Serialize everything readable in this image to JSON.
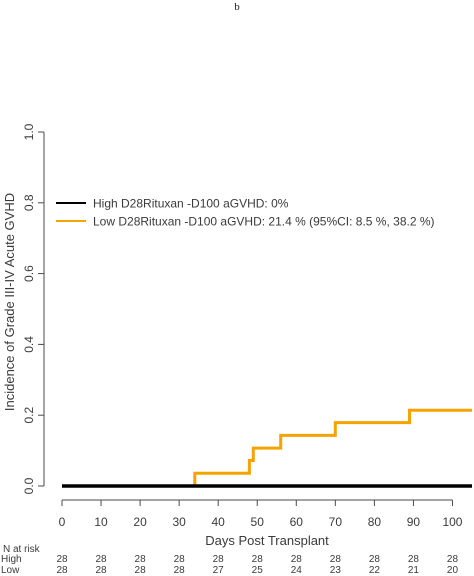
{
  "panel_label": "b",
  "chart_data": {
    "type": "line",
    "xlabel": "Days Post Transplant",
    "ylabel": "Incidence of Grade III-IV Acute GVHD",
    "xlim": [
      0,
      105
    ],
    "ylim": [
      0,
      1.0
    ],
    "x_ticks": [
      "0",
      "10",
      "20",
      "30",
      "40",
      "50",
      "60",
      "70",
      "80",
      "90",
      "100"
    ],
    "y_ticks": [
      "0.0",
      "0.2",
      "0.4",
      "0.6",
      "0.8",
      "1.0"
    ],
    "grid": false,
    "legend_position": "top-left",
    "series": [
      {
        "name": "High D28Rituxan -D100 aGVHD: 0%",
        "color": "#000000",
        "points": [
          [
            0,
            0
          ],
          [
            34,
            0
          ],
          [
            105,
            0
          ]
        ]
      },
      {
        "name": "Low D28Rituxan -D100 aGVHD: 21.4 % (95%CI: 8.5 %, 38.2 %)",
        "color": "#f5a300",
        "points": [
          [
            0,
            0
          ],
          [
            34,
            0
          ],
          [
            34,
            0.036
          ],
          [
            48,
            0.036
          ],
          [
            48,
            0.072
          ],
          [
            49,
            0.072
          ],
          [
            49,
            0.107
          ],
          [
            56,
            0.107
          ],
          [
            56,
            0.143
          ],
          [
            70,
            0.143
          ],
          [
            70,
            0.179
          ],
          [
            89,
            0.179
          ],
          [
            89,
            0.214
          ],
          [
            105,
            0.214
          ]
        ]
      }
    ],
    "risk_table": {
      "title": "N at risk",
      "rows": [
        {
          "label": "High",
          "values": [
            "28",
            "28",
            "28",
            "28",
            "28",
            "28",
            "28",
            "28",
            "28",
            "28",
            "28"
          ]
        },
        {
          "label": "Low",
          "values": [
            "28",
            "28",
            "28",
            "28",
            "27",
            "25",
            "24",
            "23",
            "22",
            "21",
            "20"
          ]
        }
      ]
    }
  }
}
